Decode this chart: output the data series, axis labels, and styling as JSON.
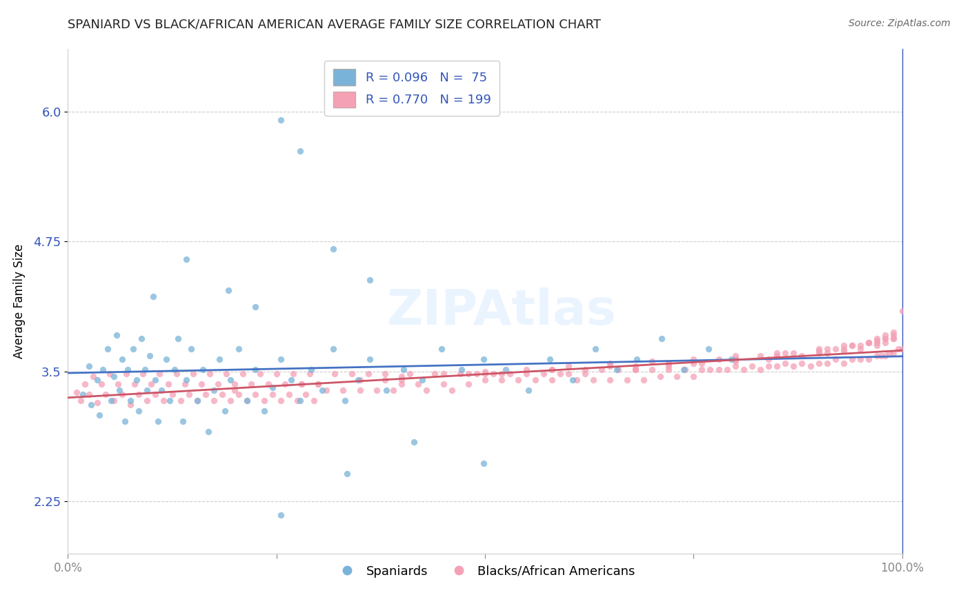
{
  "title": "SPANIARD VS BLACK/AFRICAN AMERICAN AVERAGE FAMILY SIZE CORRELATION CHART",
  "source": "Source: ZipAtlas.com",
  "ylabel": "Average Family Size",
  "xlim": [
    0.0,
    1.0
  ],
  "ylim": [
    1.75,
    6.6
  ],
  "yticks": [
    2.25,
    3.5,
    4.75,
    6.0
  ],
  "xticks": [
    0.0,
    0.25,
    0.5,
    0.75,
    1.0
  ],
  "xticklabels": [
    "0.0%",
    "",
    "",
    "",
    "100.0%"
  ],
  "blue_color": "#7ab3d9",
  "pink_color": "#f4a0b5",
  "trend_blue": "#4472c4",
  "trend_pink": "#cc5566",
  "background": "#ffffff",
  "legend_label_blue": "Spaniards",
  "legend_label_pink": "Blacks/African Americans",
  "blue_R": 0.096,
  "blue_N": 75,
  "pink_R": 0.77,
  "pink_N": 199,
  "ytick_color": "#3355bb",
  "watermark": "ZIPAtlas",
  "watermark_color": "#ccddee",
  "blue_x": [
    0.018,
    0.025,
    0.028,
    0.035,
    0.038,
    0.042,
    0.048,
    0.052,
    0.055,
    0.058,
    0.062,
    0.065,
    0.068,
    0.072,
    0.075,
    0.078,
    0.082,
    0.085,
    0.088,
    0.092,
    0.095,
    0.098,
    0.102,
    0.105,
    0.108,
    0.112,
    0.118,
    0.122,
    0.128,
    0.132,
    0.138,
    0.142,
    0.148,
    0.155,
    0.162,
    0.168,
    0.175,
    0.182,
    0.188,
    0.195,
    0.205,
    0.215,
    0.225,
    0.235,
    0.245,
    0.255,
    0.268,
    0.278,
    0.292,
    0.305,
    0.318,
    0.332,
    0.348,
    0.362,
    0.382,
    0.402,
    0.425,
    0.448,
    0.472,
    0.498,
    0.525,
    0.552,
    0.578,
    0.605,
    0.632,
    0.658,
    0.682,
    0.712,
    0.738,
    0.768,
    0.795,
    0.255,
    0.335,
    0.415,
    0.498
  ],
  "blue_y": [
    3.28,
    3.55,
    3.18,
    3.42,
    3.08,
    3.52,
    3.72,
    3.22,
    3.45,
    3.85,
    3.32,
    3.62,
    3.02,
    3.52,
    3.22,
    3.72,
    3.42,
    3.12,
    3.82,
    3.52,
    3.32,
    3.65,
    4.22,
    3.42,
    3.02,
    3.32,
    3.62,
    3.22,
    3.52,
    3.82,
    3.02,
    3.42,
    3.72,
    3.22,
    3.52,
    2.92,
    3.32,
    3.62,
    3.12,
    3.42,
    3.72,
    3.22,
    3.52,
    3.12,
    3.35,
    3.62,
    3.42,
    3.22,
    3.52,
    3.32,
    3.72,
    3.22,
    3.42,
    3.62,
    3.32,
    3.52,
    3.42,
    3.72,
    3.52,
    3.62,
    3.52,
    3.32,
    3.62,
    3.42,
    3.72,
    3.52,
    3.62,
    3.82,
    3.52,
    3.72,
    3.62,
    2.12,
    2.52,
    2.82,
    2.62
  ],
  "blue_extra_x": [
    0.255,
    0.278,
    0.318,
    0.362,
    0.142,
    0.192,
    0.225
  ],
  "blue_extra_y": [
    5.92,
    5.62,
    4.68,
    4.38,
    4.58,
    4.28,
    4.12
  ],
  "pink_x": [
    0.01,
    0.015,
    0.02,
    0.025,
    0.03,
    0.035,
    0.04,
    0.045,
    0.05,
    0.055,
    0.06,
    0.065,
    0.07,
    0.075,
    0.08,
    0.085,
    0.09,
    0.095,
    0.1,
    0.105,
    0.11,
    0.115,
    0.12,
    0.125,
    0.13,
    0.135,
    0.14,
    0.145,
    0.15,
    0.155,
    0.16,
    0.165,
    0.17,
    0.175,
    0.18,
    0.185,
    0.19,
    0.195,
    0.2,
    0.205,
    0.21,
    0.215,
    0.22,
    0.225,
    0.23,
    0.235,
    0.24,
    0.245,
    0.25,
    0.255,
    0.26,
    0.265,
    0.27,
    0.275,
    0.28,
    0.285,
    0.29,
    0.295,
    0.3,
    0.31,
    0.32,
    0.33,
    0.34,
    0.35,
    0.36,
    0.37,
    0.38,
    0.39,
    0.4,
    0.41,
    0.42,
    0.43,
    0.44,
    0.45,
    0.46,
    0.47,
    0.48,
    0.49,
    0.5,
    0.51,
    0.52,
    0.53,
    0.54,
    0.55,
    0.56,
    0.57,
    0.58,
    0.59,
    0.6,
    0.61,
    0.62,
    0.63,
    0.64,
    0.65,
    0.66,
    0.67,
    0.68,
    0.69,
    0.7,
    0.71,
    0.72,
    0.73,
    0.74,
    0.75,
    0.76,
    0.77,
    0.78,
    0.79,
    0.8,
    0.81,
    0.82,
    0.83,
    0.84,
    0.85,
    0.86,
    0.87,
    0.88,
    0.89,
    0.9,
    0.91,
    0.92,
    0.93,
    0.94,
    0.95,
    0.96,
    0.97,
    0.975,
    0.98,
    0.985,
    0.99,
    0.995,
    1.0,
    0.3,
    0.35,
    0.4,
    0.45,
    0.5,
    0.55,
    0.6,
    0.65,
    0.7,
    0.75,
    0.8,
    0.85,
    0.9,
    0.92,
    0.94,
    0.96,
    0.97,
    0.98,
    0.99,
    1.0,
    0.68,
    0.72,
    0.76,
    0.8,
    0.84,
    0.88,
    0.91,
    0.93,
    0.95,
    0.97,
    0.98,
    0.99,
    0.5,
    0.58,
    0.65,
    0.72,
    0.78,
    0.83,
    0.87,
    0.91,
    0.94,
    0.96,
    0.97,
    0.98,
    0.99,
    0.2,
    0.28,
    0.38,
    0.48,
    0.58,
    0.68,
    0.75,
    0.8,
    0.85,
    0.9,
    0.93,
    0.95,
    0.97,
    0.99,
    0.4,
    0.52,
    0.62,
    0.72,
    0.8,
    0.86,
    0.9,
    0.93,
    0.96,
    0.98
  ],
  "pink_y": [
    3.3,
    3.22,
    3.38,
    3.28,
    3.45,
    3.2,
    3.38,
    3.28,
    3.48,
    3.22,
    3.38,
    3.28,
    3.48,
    3.18,
    3.38,
    3.28,
    3.48,
    3.22,
    3.38,
    3.28,
    3.48,
    3.22,
    3.38,
    3.28,
    3.48,
    3.22,
    3.38,
    3.28,
    3.48,
    3.22,
    3.38,
    3.28,
    3.48,
    3.22,
    3.38,
    3.28,
    3.48,
    3.22,
    3.38,
    3.28,
    3.48,
    3.22,
    3.38,
    3.28,
    3.48,
    3.22,
    3.38,
    3.28,
    3.48,
    3.22,
    3.38,
    3.28,
    3.48,
    3.22,
    3.38,
    3.28,
    3.48,
    3.22,
    3.38,
    3.32,
    3.48,
    3.32,
    3.48,
    3.32,
    3.48,
    3.32,
    3.48,
    3.32,
    3.38,
    3.48,
    3.38,
    3.32,
    3.48,
    3.38,
    3.32,
    3.48,
    3.38,
    3.48,
    3.42,
    3.48,
    3.42,
    3.48,
    3.42,
    3.48,
    3.42,
    3.48,
    3.42,
    3.48,
    3.48,
    3.42,
    3.48,
    3.42,
    3.52,
    3.42,
    3.52,
    3.42,
    3.52,
    3.42,
    3.52,
    3.45,
    3.52,
    3.45,
    3.52,
    3.45,
    3.52,
    3.52,
    3.52,
    3.52,
    3.55,
    3.52,
    3.55,
    3.52,
    3.55,
    3.55,
    3.58,
    3.55,
    3.58,
    3.55,
    3.58,
    3.58,
    3.62,
    3.58,
    3.62,
    3.62,
    3.62,
    3.65,
    3.65,
    3.65,
    3.68,
    3.68,
    3.72,
    3.72,
    3.38,
    3.42,
    3.45,
    3.48,
    3.5,
    3.52,
    3.55,
    3.58,
    3.6,
    3.62,
    3.65,
    3.68,
    3.7,
    3.72,
    3.75,
    3.78,
    3.8,
    3.82,
    3.85,
    4.08,
    3.52,
    3.55,
    3.58,
    3.6,
    3.62,
    3.65,
    3.68,
    3.7,
    3.72,
    3.75,
    3.78,
    3.82,
    3.48,
    3.52,
    3.55,
    3.58,
    3.62,
    3.65,
    3.68,
    3.72,
    3.75,
    3.78,
    3.82,
    3.85,
    3.88,
    3.32,
    3.38,
    3.42,
    3.48,
    3.52,
    3.55,
    3.58,
    3.62,
    3.65,
    3.68,
    3.72,
    3.75,
    3.78,
    3.82,
    3.42,
    3.48,
    3.52,
    3.58,
    3.62,
    3.68,
    3.72,
    3.75,
    3.78,
    3.82
  ]
}
